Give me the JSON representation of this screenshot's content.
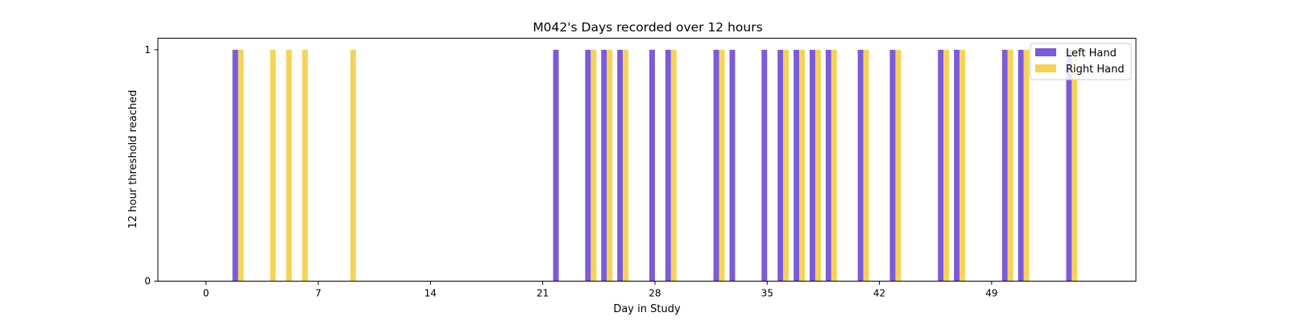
{
  "chart_data": {
    "type": "bar",
    "title": "M042's Days recorded over 12 hours",
    "xlabel": "Day in Study",
    "ylabel": "12 hour threshold reached",
    "xlim": [
      -3,
      58
    ],
    "ylim": [
      0,
      1.05
    ],
    "xticks": [
      0,
      7,
      14,
      21,
      28,
      35,
      42,
      49
    ],
    "yticks": [
      0,
      1
    ],
    "grid": false,
    "legend_position": "top-right",
    "series": [
      {
        "name": "Left Hand",
        "color": "#7b5bd6",
        "days": [
          2,
          22,
          24,
          25,
          26,
          28,
          29,
          32,
          33,
          35,
          36,
          37,
          38,
          39,
          41,
          43,
          46,
          47,
          50,
          51,
          54
        ]
      },
      {
        "name": "Right Hand",
        "color": "#f5d35a",
        "days": [
          2,
          4,
          5,
          6,
          9,
          24,
          25,
          26,
          29,
          32,
          36,
          37,
          38,
          39,
          41,
          43,
          46,
          47,
          50,
          51,
          54
        ]
      }
    ]
  }
}
